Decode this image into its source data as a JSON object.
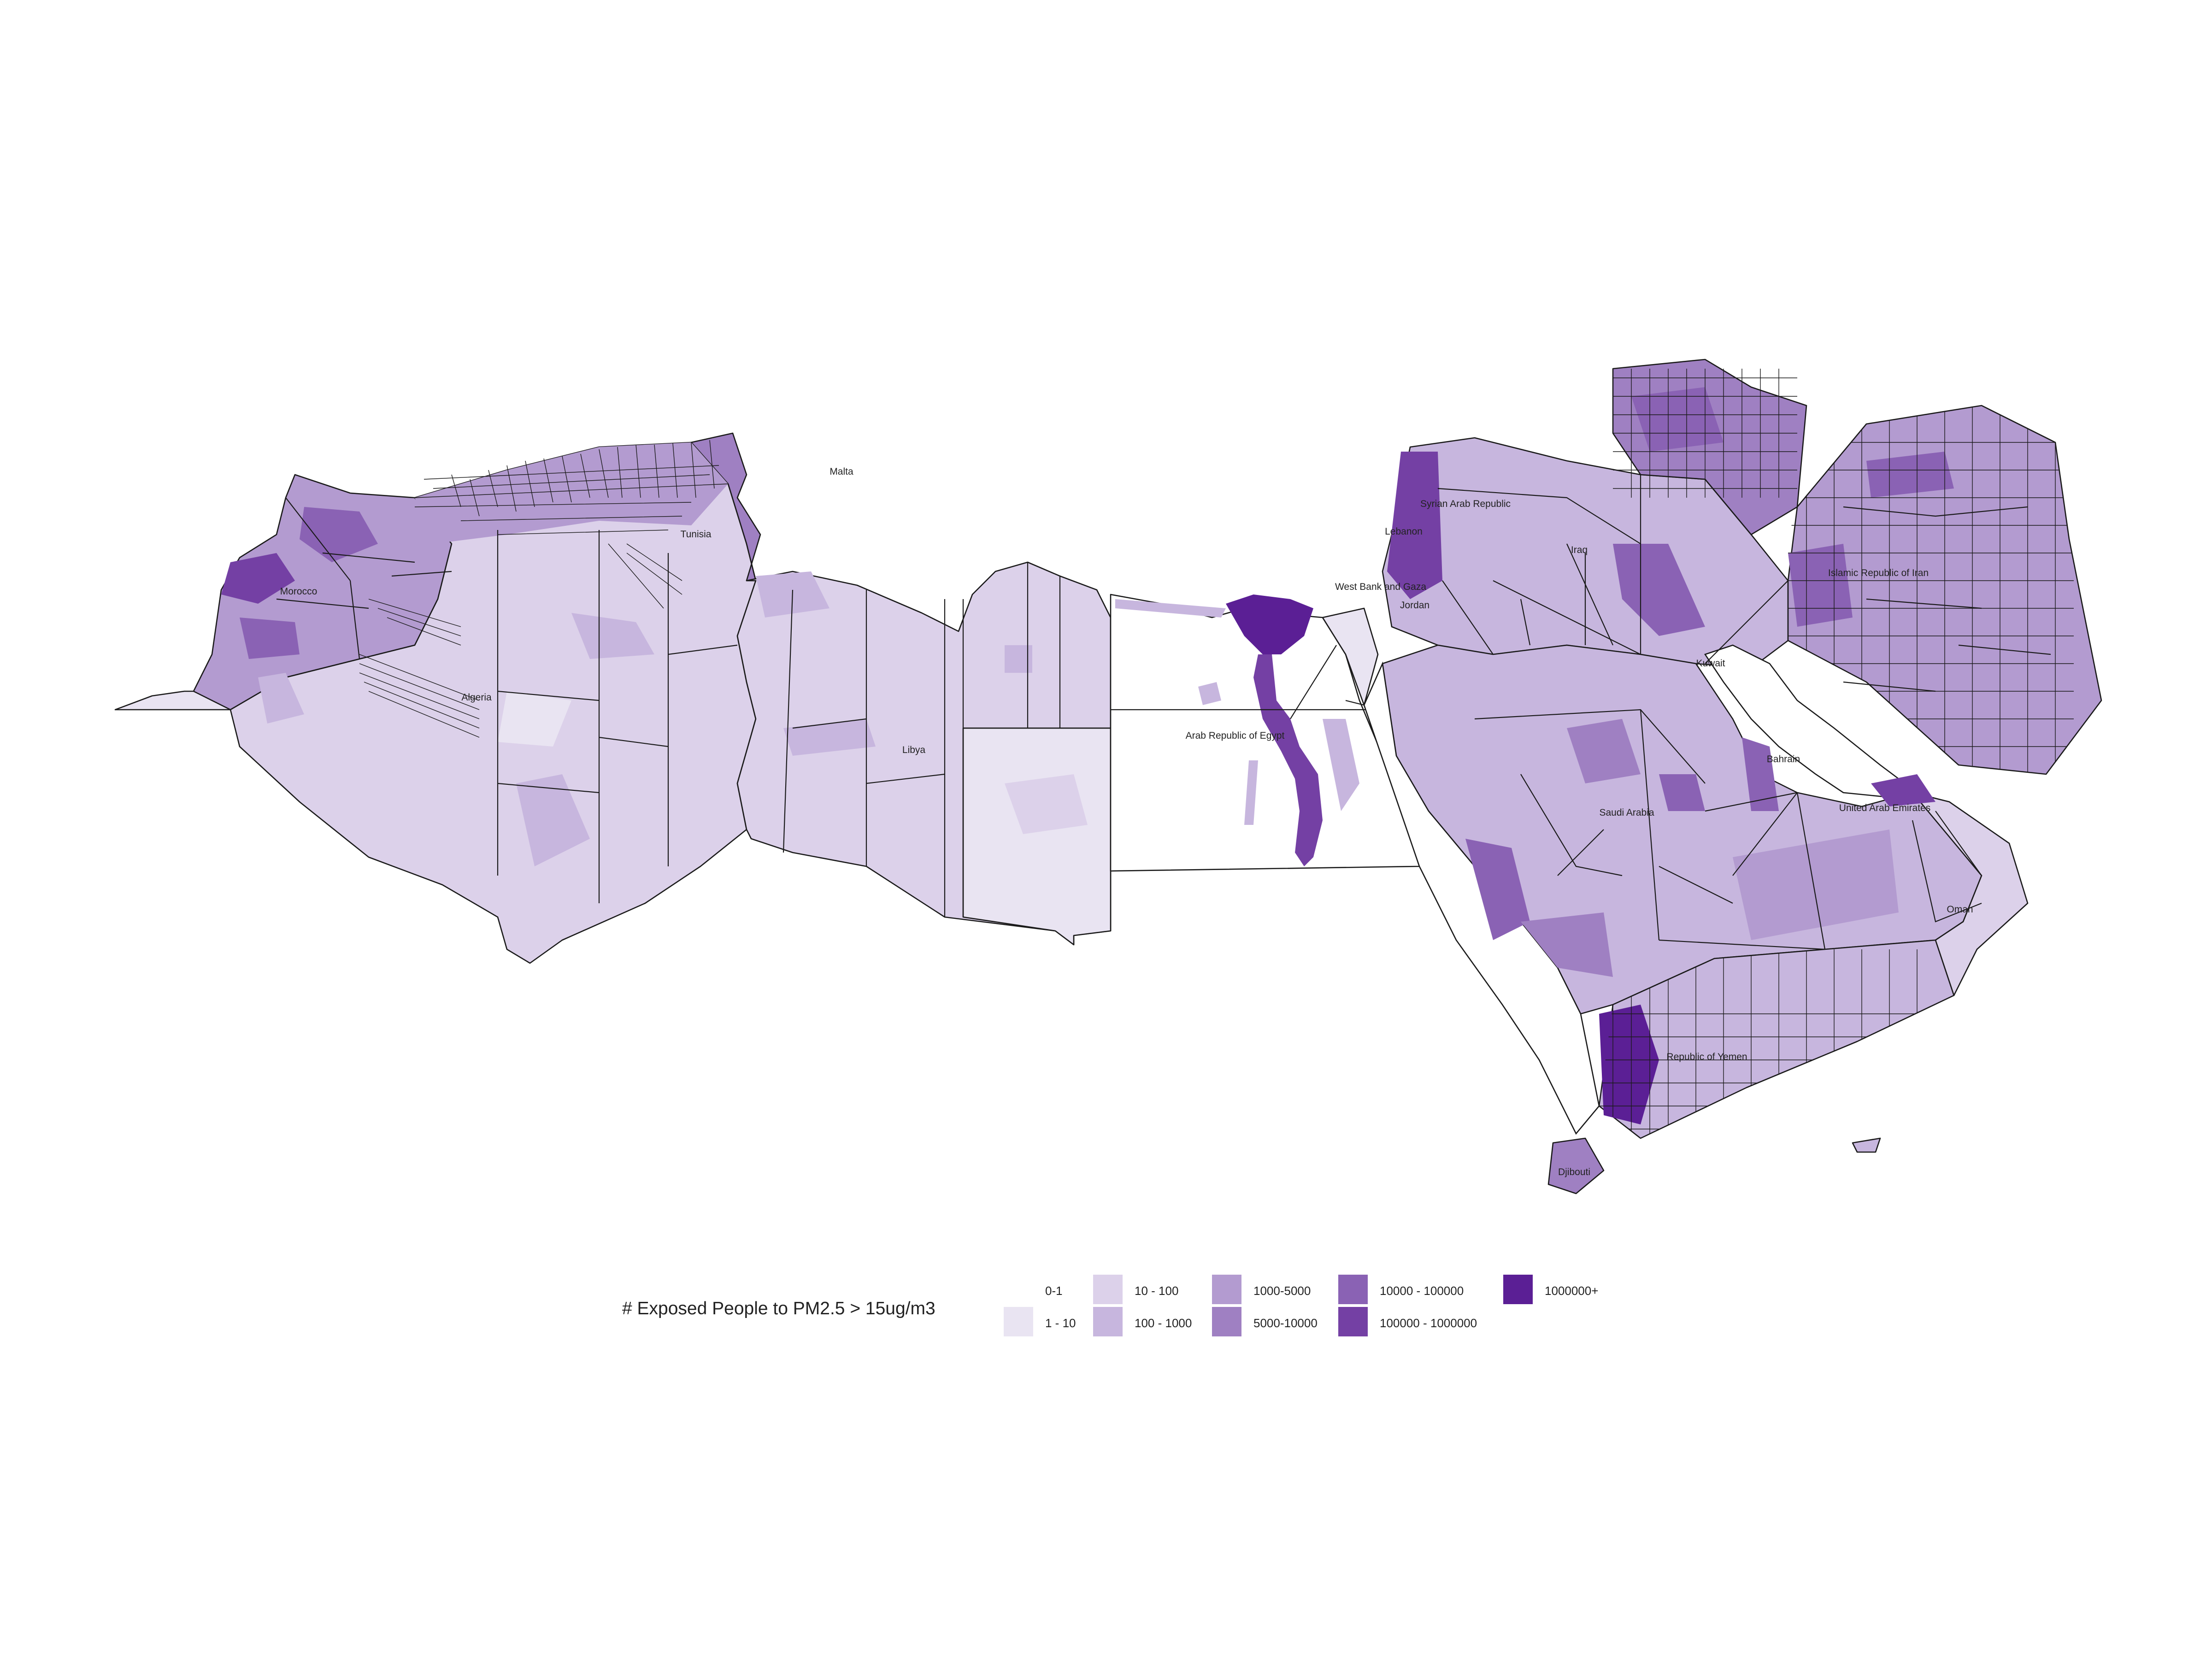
{
  "legend": {
    "title": "# Exposed People to PM2.5 > 15ug/m3",
    "classes": [
      {
        "label": "0-1",
        "color": "#ffffff"
      },
      {
        "label": "1 - 10",
        "color": "#e9e4f2"
      },
      {
        "label": "10 - 100",
        "color": "#dcd1ea"
      },
      {
        "label": "100 - 1000",
        "color": "#c7b6de"
      },
      {
        "label": "1000-5000",
        "color": "#b39bd0"
      },
      {
        "label": "5000-10000",
        "color": "#9f80c2"
      },
      {
        "label": "10000 - 100000",
        "color": "#8a62b4"
      },
      {
        "label": "100000 - 1000000",
        "color": "#7440a4"
      },
      {
        "label": "1000000+",
        "color": "#5b1f95"
      }
    ]
  },
  "labels": {
    "malta": "Malta",
    "morocco": "Morocco",
    "algeria": "Algeria",
    "tunisia": "Tunisia",
    "libya": "Libya",
    "egypt": "Arab Republic of Egypt",
    "syria": "Syrian Arab Republic",
    "lebanon": "Lebanon",
    "westbank": "West Bank and Gaza",
    "jordan": "Jordan",
    "iraq": "Iraq",
    "iran": "Islamic Republic of Iran",
    "kuwait": "Kuwait",
    "bahrain": "Bahrain",
    "saudi": "Saudi Arabia",
    "uae": "United Arab Emirates",
    "oman": "Oman",
    "yemen": "Republic of Yemen",
    "djibouti": "Djibouti"
  }
}
